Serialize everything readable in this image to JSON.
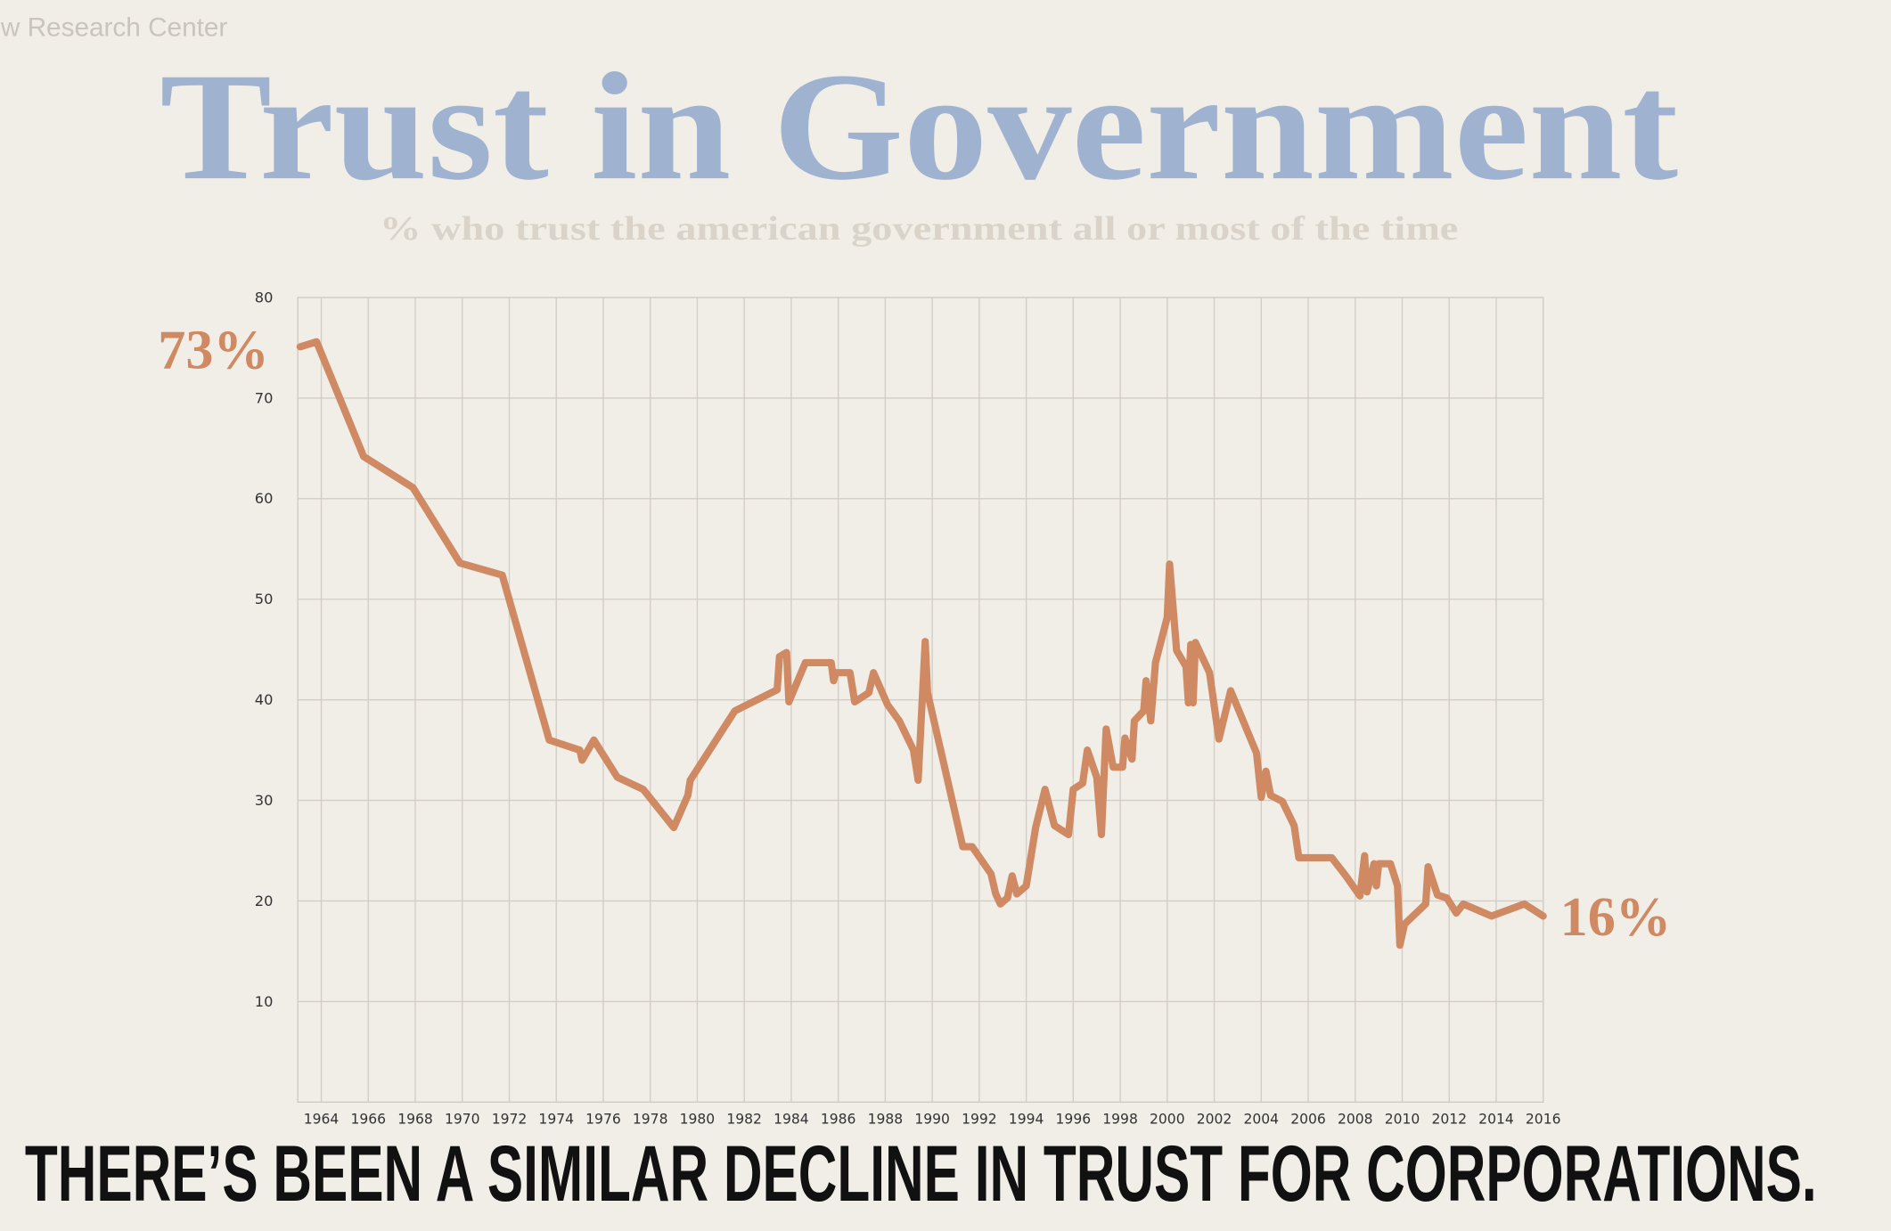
{
  "source": "w Research Center",
  "caption": "THERE’S BEEN A SIMILAR DECLINE IN TRUST FOR CORPORATIONS.",
  "chart_data": {
    "type": "line",
    "title": "Trust in Government",
    "subtitle": "% who trust the american government all or most of the time",
    "annotations": [
      "73%",
      "16%"
    ],
    "color": "#cf8a63",
    "grid": true,
    "x": [
      1963.1,
      1963.8,
      1965.8,
      1967.9,
      1969.9,
      1971.7,
      1973.7,
      1975.0,
      1975.1,
      1975.6,
      1976.6,
      1977.7,
      1979.0,
      1979.6,
      1979.7,
      1981.6,
      1983.4,
      1983.5,
      1983.8,
      1983.9,
      1984.6,
      1985.7,
      1985.8,
      1985.9,
      1986.5,
      1986.7,
      1987.3,
      1987.5,
      1988.1,
      1988.6,
      1989.2,
      1989.4,
      1989.7,
      1989.8,
      1991.3,
      1991.7,
      1992.5,
      1992.7,
      1992.9,
      1993.2,
      1993.4,
      1993.6,
      1994.0,
      1994.4,
      1994.8,
      1995.2,
      1995.8,
      1996.0,
      1996.4,
      1996.6,
      1997.0,
      1997.2,
      1997.4,
      1997.7,
      1998.1,
      1998.2,
      1998.5,
      1998.6,
      1999.0,
      1999.1,
      1999.3,
      1999.5,
      2000.0,
      2000.1,
      2000.4,
      2000.8,
      2000.9,
      2001.0,
      2001.1,
      2001.2,
      2001.8,
      2002.2,
      2002.7,
      2003.8,
      2004.0,
      2004.2,
      2004.4,
      2004.9,
      2005.4,
      2005.6,
      2007.0,
      2007.6,
      2008.2,
      2008.4,
      2008.5,
      2008.8,
      2008.9,
      2009.0,
      2009.5,
      2009.8,
      2009.9,
      2010.1,
      2011.0,
      2011.1,
      2011.5,
      2011.9,
      2012.3,
      2012.6,
      2013.8,
      2015.2,
      2016.0
    ],
    "values": [
      75.1,
      75.6,
      64.2,
      61.1,
      53.6,
      52.4,
      36,
      35,
      34,
      36,
      32.3,
      31.1,
      27.3,
      30.5,
      32,
      38.9,
      41,
      44.3,
      44.7,
      39.8,
      43.7,
      43.7,
      41.9,
      42.7,
      42.7,
      39.8,
      40.7,
      42.7,
      39.5,
      37.9,
      35,
      32,
      45.8,
      40.7,
      25.4,
      25.4,
      22.7,
      20.7,
      19.7,
      20.3,
      22.5,
      20.7,
      21.5,
      27.3,
      31.1,
      27.5,
      26.6,
      31.1,
      31.7,
      35,
      32.3,
      26.6,
      37.1,
      33.3,
      33.3,
      36.2,
      34.1,
      37.9,
      38.9,
      41.9,
      37.9,
      43.7,
      48.2,
      53.5,
      44.9,
      43.3,
      39.7,
      45.5,
      39.7,
      45.7,
      42.7,
      36.1,
      40.9,
      34.7,
      30.3,
      32.9,
      30.5,
      29.9,
      27.5,
      24.3,
      24.3,
      22.5,
      20.5,
      24.5,
      20.9,
      23.7,
      21.5,
      23.7,
      23.7,
      21.5,
      15.6,
      17.7,
      19.7,
      23.4,
      20.6,
      20.3,
      18.8,
      19.7,
      18.5,
      19.7,
      18.5
    ],
    "xlim": [
      1963,
      2016
    ],
    "xticks": [
      1964,
      1966,
      1968,
      1970,
      1972,
      1974,
      1976,
      1978,
      1980,
      1982,
      1984,
      1986,
      1988,
      1990,
      1992,
      1994,
      1996,
      1998,
      2000,
      2002,
      2004,
      2006,
      2008,
      2010,
      2012,
      2014,
      2016
    ],
    "ylim": [
      0,
      80
    ],
    "yticks": [
      10,
      20,
      30,
      40,
      50,
      60,
      70,
      80
    ]
  }
}
